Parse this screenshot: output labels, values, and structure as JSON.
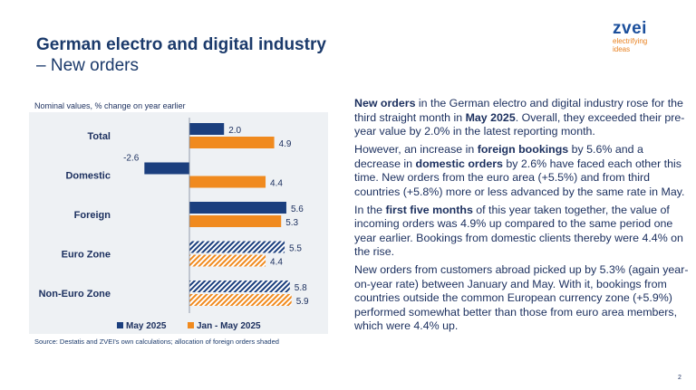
{
  "header": {
    "title": "German electro and digital industry",
    "subtitle": "– New orders"
  },
  "logo": {
    "word": "zvei",
    "tagline_1": "electrifying",
    "tagline_2": "ideas"
  },
  "chart_subtitle": "Nominal values, % change on year earlier",
  "source": "Source: Destatis and ZVEI's own calculations; allocation of foreign orders shaded",
  "chart_data": {
    "type": "bar",
    "orientation": "horizontal",
    "title": "",
    "xlabel": "",
    "ylabel": "",
    "categories": [
      "Total",
      "Domestic",
      "Foreign",
      "Euro Zone",
      "Non-Euro Zone"
    ],
    "series": [
      {
        "name": "May 2025",
        "values": [
          2.0,
          -2.6,
          5.6,
          5.5,
          5.8
        ],
        "color": "#1b3f7e"
      },
      {
        "name": "Jan - May 2025",
        "values": [
          4.9,
          4.4,
          5.3,
          4.4,
          5.9
        ],
        "color": "#f08a1e"
      }
    ],
    "value_labels": {
      "May 2025": [
        "2.0",
        "-2.6",
        "5.6",
        "5.5",
        "5.8"
      ],
      "Jan - May 2025": [
        "4.9",
        "4.4",
        "5.3",
        "4.4",
        "5.9"
      ]
    },
    "shaded_categories": [
      "Euro Zone",
      "Non-Euro Zone"
    ],
    "xlim": [
      -3.2,
      6.5
    ],
    "grid": false,
    "legend_placement": "bottom"
  },
  "text": {
    "p1": [
      {
        "t": "New orders",
        "b": true
      },
      {
        "t": " in the German electro and digital industry rose for the third straight month in ",
        "b": false
      },
      {
        "t": "May 2025",
        "b": true
      },
      {
        "t": ". Overall, they exceeded their pre-year value by 2.0% in the latest reporting month.",
        "b": false
      }
    ],
    "p2": [
      {
        "t": "However, an increase in ",
        "b": false
      },
      {
        "t": "foreign bookings",
        "b": true
      },
      {
        "t": " by 5.6% and a decrease in ",
        "b": false
      },
      {
        "t": "domestic orders",
        "b": true
      },
      {
        "t": " by 2.6% have faced each other this time. New orders from the euro area (+5.5%) and from third countries (+5.8%) more or less advanced by the same rate in May.",
        "b": false
      }
    ],
    "p3": [
      {
        "t": "In the ",
        "b": false
      },
      {
        "t": "first five months",
        "b": true
      },
      {
        "t": " of this year taken together, the value of incoming orders was 4.9% up compared to the same period one year earlier. Bookings from domestic clients thereby were 4.4% on the rise.",
        "b": false
      }
    ],
    "p4": [
      {
        "t": "New orders from customers abroad picked up by 5.3% (again year-on-year rate) between January and May. With it, bookings from countries outside the common European currency zone (+5.9%) performed somewhat better than those from euro area members, which were 4.4% up.",
        "b": false
      }
    ]
  },
  "page_number": "2"
}
